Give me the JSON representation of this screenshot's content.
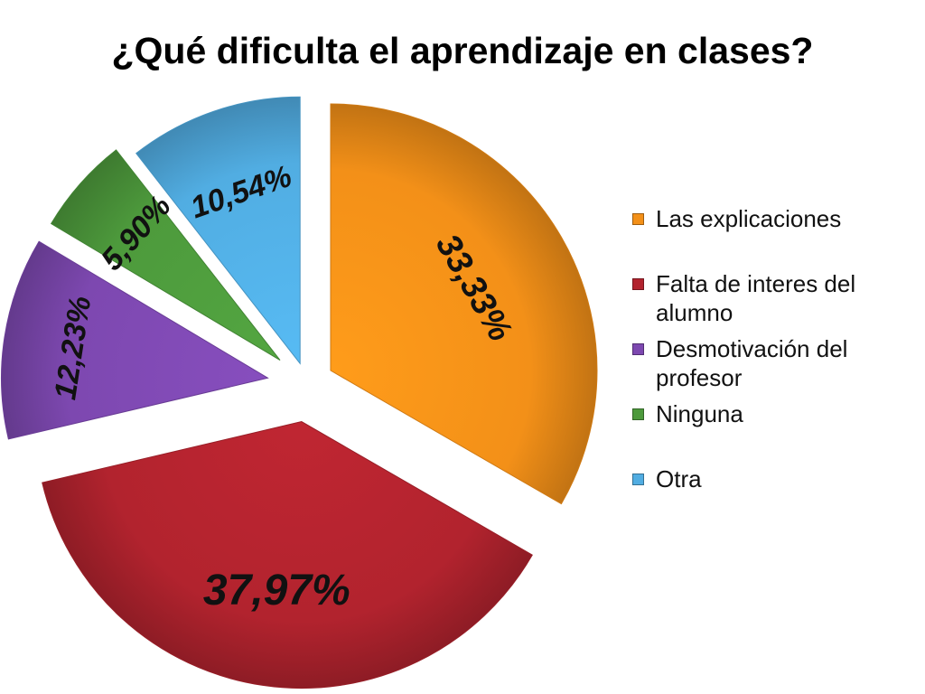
{
  "title": "¿Qué dificulta el aprendizaje en clases?",
  "chart_data": {
    "type": "pie",
    "title": "¿Qué dificulta el aprendizaje en clases?",
    "slices": [
      {
        "label": "Las explicaciones",
        "value": 33.33,
        "display": "33,33%",
        "color": "#F39018"
      },
      {
        "label": "Falta de interes del alumno",
        "value": 37.97,
        "display": "37,97%",
        "color": "#B2232E"
      },
      {
        "label": "Desmotivación del profesor",
        "value": 12.23,
        "display": "12,23%",
        "color": "#7D48B0"
      },
      {
        "label": "Ninguna",
        "value": 5.9,
        "display": "5,90%",
        "color": "#4D9A3C"
      },
      {
        "label": "Otra",
        "value": 10.54,
        "display": "10,54%",
        "color": "#51ADE2"
      }
    ],
    "legend_position": "right",
    "exploded": true
  }
}
